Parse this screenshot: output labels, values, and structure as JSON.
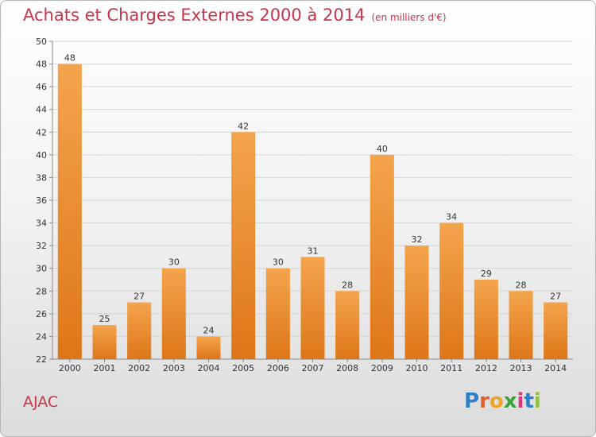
{
  "header": {
    "title": "Achats et Charges Externes 2000 à 2014",
    "subtitle": "(en milliers d'€)"
  },
  "footer": {
    "commune": "AJAC",
    "logo_letters": [
      "P",
      "r",
      "o",
      "x",
      "i",
      "t",
      "i"
    ],
    "logo_colors": [
      "#2f7fc7",
      "#e85c2a",
      "#f0a323",
      "#3aa33a",
      "#e0347f",
      "#2f7fc7",
      "#8fc23b"
    ]
  },
  "colors": {
    "bar": "#f08d2c",
    "bar_light": "#f6ad58",
    "bar_dark": "#d86f12",
    "title": "#c8344a"
  },
  "chart_data": {
    "type": "bar",
    "categories": [
      "2000",
      "2001",
      "2002",
      "2003",
      "2004",
      "2005",
      "2006",
      "2007",
      "2008",
      "2009",
      "2010",
      "2011",
      "2012",
      "2013",
      "2014"
    ],
    "values": [
      48,
      25,
      27,
      30,
      24,
      42,
      30,
      31,
      28,
      40,
      32,
      34,
      29,
      28,
      27
    ],
    "title": "Achats et Charges Externes 2000 à 2014",
    "subtitle": "(en milliers d'€)",
    "ylim": [
      22,
      50
    ],
    "yticks": [
      22,
      24,
      26,
      28,
      30,
      32,
      34,
      36,
      38,
      40,
      42,
      44,
      46,
      48,
      50
    ],
    "grid": true
  }
}
